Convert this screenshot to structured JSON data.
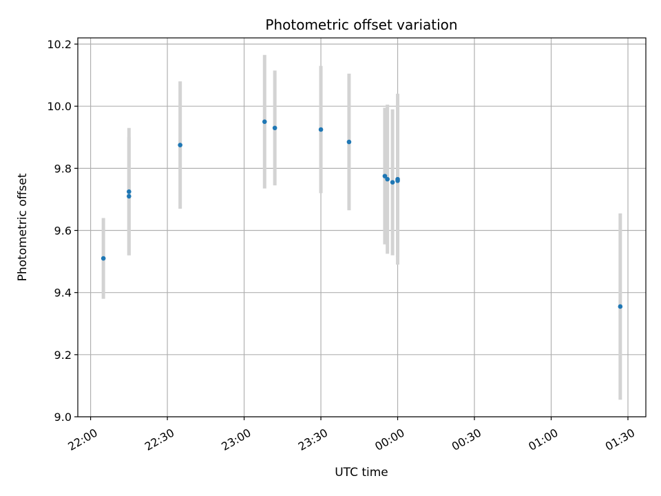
{
  "chart_data": {
    "type": "scatter",
    "title": "Photometric offset variation",
    "xlabel": "UTC time",
    "ylabel": "Photometric offset",
    "x_ticks": [
      "22:00",
      "22:30",
      "23:00",
      "23:30",
      "00:00",
      "00:30",
      "01:00",
      "01:30"
    ],
    "y_ticks": [
      "9.0",
      "9.2",
      "9.4",
      "9.6",
      "9.8",
      "10.0",
      "10.2"
    ],
    "xlim": [
      "21:55",
      "01:37"
    ],
    "ylim": [
      9.0,
      10.22
    ],
    "grid": true,
    "colors": {
      "point": "#1f77b4",
      "errorbar": "#d3d3d3",
      "grid": "#b0b0b0"
    },
    "points": [
      {
        "t": "22:05",
        "y": 9.51,
        "err": 0.13
      },
      {
        "t": "22:15",
        "y": 9.725,
        "err": 0.205
      },
      {
        "t": "22:15",
        "y": 9.71,
        "err": 0.19
      },
      {
        "t": "22:35",
        "y": 9.875,
        "err": 0.205
      },
      {
        "t": "23:08",
        "y": 9.95,
        "err": 0.215
      },
      {
        "t": "23:12",
        "y": 9.93,
        "err": 0.185
      },
      {
        "t": "23:30",
        "y": 9.925,
        "err": 0.205
      },
      {
        "t": "23:41",
        "y": 9.885,
        "err": 0.22
      },
      {
        "t": "23:55",
        "y": 9.775,
        "err": 0.22
      },
      {
        "t": "23:56",
        "y": 9.765,
        "err": 0.24
      },
      {
        "t": "23:58",
        "y": 9.755,
        "err": 0.235
      },
      {
        "t": "00:00",
        "y": 9.765,
        "err": 0.275
      },
      {
        "t": "00:00",
        "y": 9.76,
        "err": 0.245
      },
      {
        "t": "01:27",
        "y": 9.355,
        "err": 0.3
      }
    ]
  }
}
